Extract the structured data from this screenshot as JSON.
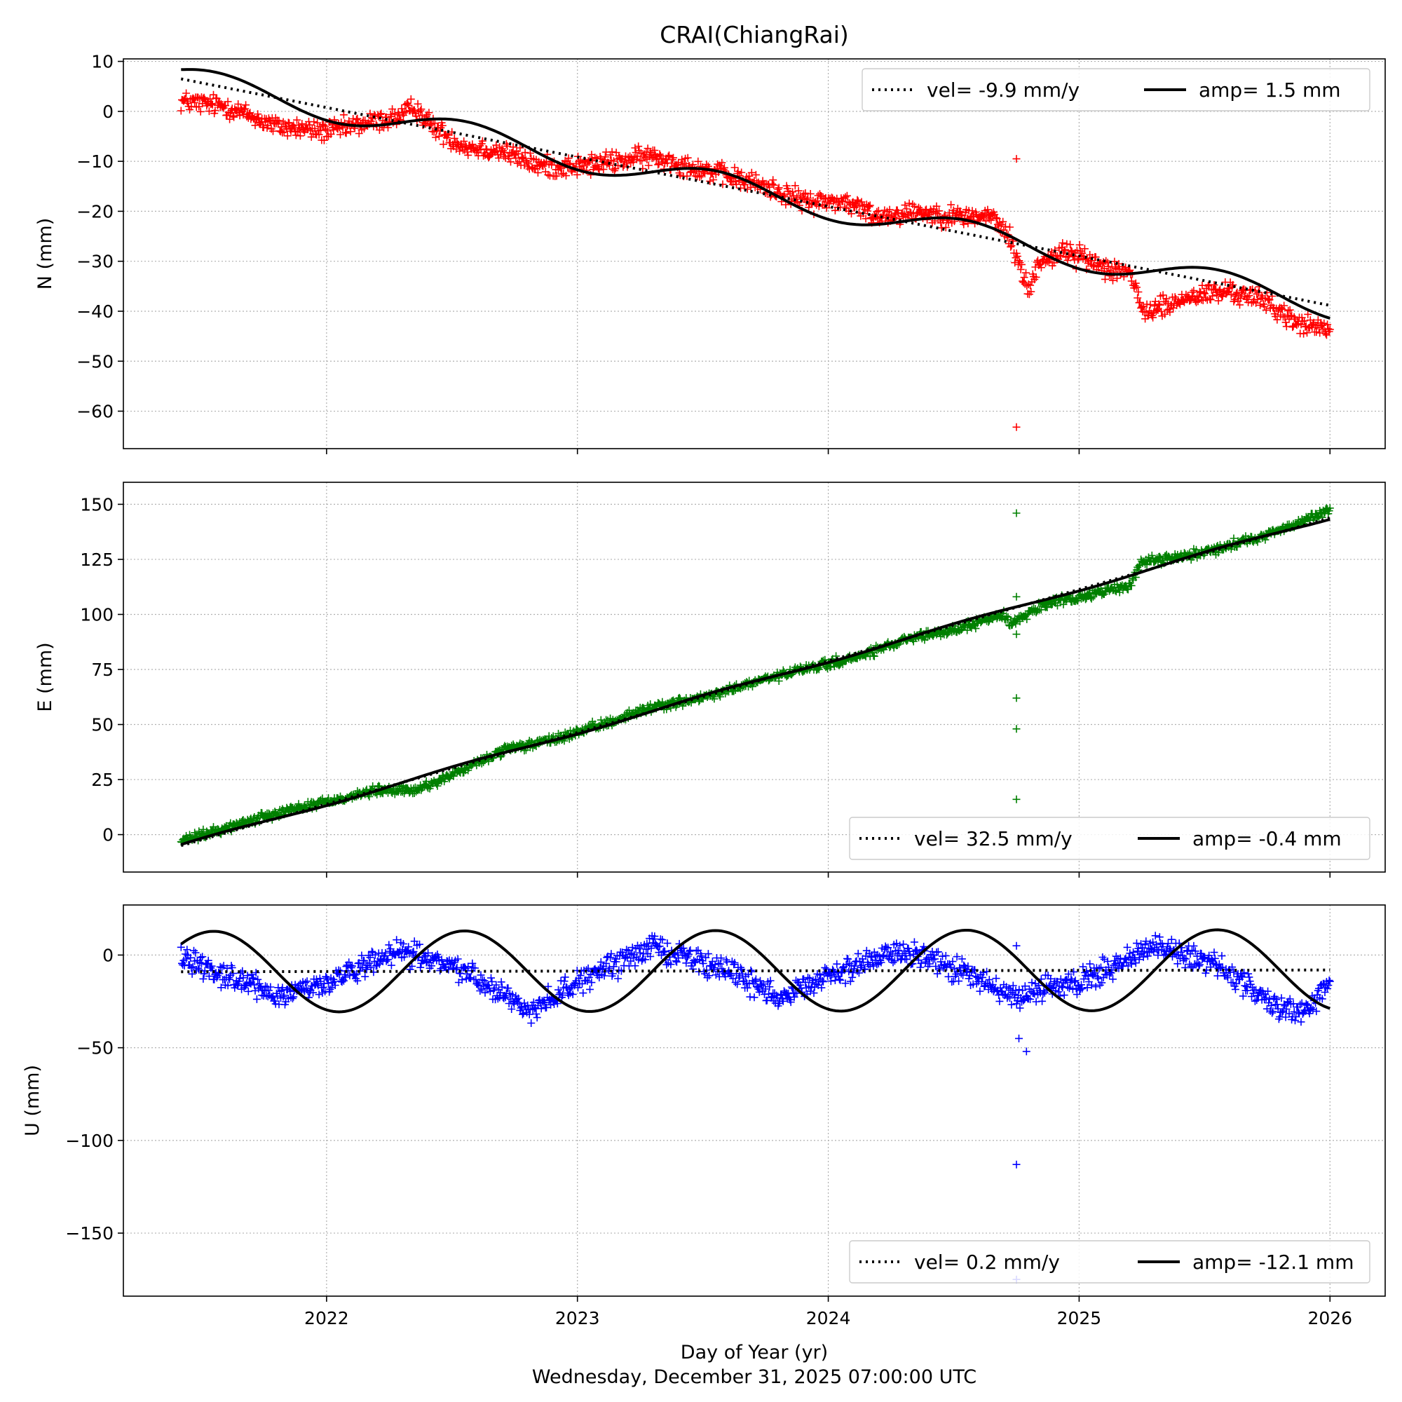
{
  "figure": {
    "title": "CRAI(ChiangRai)",
    "xlabel": "Day of Year (yr)",
    "timestamp": "Wednesday, December 31, 2025 07:00:00 UTC"
  },
  "chart_data": [
    {
      "type": "scatter",
      "title": "CRAI(ChiangRai)",
      "ylabel": "N (mm)",
      "xlabel": "",
      "xlim": [
        2021.19,
        2026.22
      ],
      "ylim": [
        -67.5,
        10.5
      ],
      "yticks": [
        10,
        0,
        -10,
        -20,
        -30,
        -40,
        -50,
        -60
      ],
      "xticks": [
        2022,
        2023,
        2024,
        2025,
        2026
      ],
      "grid": true,
      "marker_color": "#ff0000",
      "legend": {
        "location": "top-right",
        "vel_label": "vel= -9.9 mm/y",
        "amp_label": "amp= 1.5 mm"
      },
      "trend": {
        "start": 2021.42,
        "end": 2026.0,
        "offset": 6.5,
        "velocity": -9.9
      },
      "seasonal": {
        "amplitude": 1.5,
        "phase_year": 2021.55
      },
      "scatter_control": [
        [
          2021.42,
          2
        ],
        [
          2021.6,
          1
        ],
        [
          2021.8,
          -3
        ],
        [
          2022.0,
          -4
        ],
        [
          2022.2,
          -2
        ],
        [
          2022.3,
          -1
        ],
        [
          2022.35,
          1
        ],
        [
          2022.42,
          -3
        ],
        [
          2022.55,
          -7
        ],
        [
          2022.7,
          -8
        ],
        [
          2022.85,
          -11
        ],
        [
          2023.0,
          -11
        ],
        [
          2023.15,
          -10
        ],
        [
          2023.3,
          -9
        ],
        [
          2023.45,
          -11
        ],
        [
          2023.6,
          -13
        ],
        [
          2023.75,
          -15
        ],
        [
          2023.9,
          -18
        ],
        [
          2024.05,
          -18
        ],
        [
          2024.2,
          -21
        ],
        [
          2024.35,
          -20
        ],
        [
          2024.5,
          -21
        ],
        [
          2024.65,
          -21
        ],
        [
          2024.72,
          -25
        ],
        [
          2024.75,
          -29
        ],
        [
          2024.8,
          -36
        ],
        [
          2024.84,
          -30
        ],
        [
          2024.95,
          -28
        ],
        [
          2025.1,
          -31
        ],
        [
          2025.2,
          -32
        ],
        [
          2025.25,
          -40
        ],
        [
          2025.35,
          -39
        ],
        [
          2025.45,
          -37
        ],
        [
          2025.6,
          -36
        ],
        [
          2025.75,
          -38
        ],
        [
          2025.85,
          -42
        ],
        [
          2026.0,
          -44
        ]
      ],
      "scatter_noise": 1.8,
      "outliers": [
        [
          2024.75,
          -9.5
        ],
        [
          2024.75,
          -63.2
        ]
      ]
    },
    {
      "type": "scatter",
      "title": "",
      "ylabel": "E (mm)",
      "xlabel": "",
      "xlim": [
        2021.19,
        2026.22
      ],
      "ylim": [
        -17,
        160
      ],
      "yticks": [
        150,
        125,
        100,
        75,
        50,
        25,
        0
      ],
      "xticks": [
        2022,
        2023,
        2024,
        2025,
        2026
      ],
      "grid": true,
      "marker_color": "#008000",
      "legend": {
        "location": "bottom-right",
        "vel_label": "vel= 32.5 mm/y",
        "amp_label": "amp= -0.4 mm"
      },
      "trend": {
        "start": 2021.42,
        "end": 2026.0,
        "offset": -5,
        "velocity": 32.5
      },
      "seasonal": {
        "amplitude": -0.4,
        "phase_year": 2021.55
      },
      "scatter_control": [
        [
          2021.42,
          -3
        ],
        [
          2021.6,
          3
        ],
        [
          2021.8,
          10
        ],
        [
          2022.0,
          15
        ],
        [
          2022.2,
          20
        ],
        [
          2022.35,
          20
        ],
        [
          2022.5,
          27
        ],
        [
          2022.7,
          38
        ],
        [
          2022.9,
          43
        ],
        [
          2023.1,
          50
        ],
        [
          2023.3,
          58
        ],
        [
          2023.5,
          62
        ],
        [
          2023.7,
          69
        ],
        [
          2023.9,
          75
        ],
        [
          2024.1,
          80
        ],
        [
          2024.3,
          88
        ],
        [
          2024.5,
          93
        ],
        [
          2024.7,
          100
        ],
        [
          2024.73,
          96
        ],
        [
          2024.85,
          104
        ],
        [
          2025.0,
          108
        ],
        [
          2025.2,
          113
        ],
        [
          2025.25,
          124
        ],
        [
          2025.45,
          127
        ],
        [
          2025.65,
          133
        ],
        [
          2025.85,
          140
        ],
        [
          2026.0,
          148
        ]
      ],
      "scatter_noise": 1.8,
      "outliers": [
        [
          2024.75,
          146
        ],
        [
          2024.75,
          108
        ],
        [
          2024.75,
          91
        ],
        [
          2024.75,
          62
        ],
        [
          2024.75,
          48
        ],
        [
          2024.75,
          16
        ]
      ]
    },
    {
      "type": "scatter",
      "title": "",
      "ylabel": "U (mm)",
      "xlabel": "Day of Year (yr)",
      "xlim": [
        2021.19,
        2026.22
      ],
      "ylim": [
        -184,
        27
      ],
      "yticks": [
        0,
        -50,
        -100,
        -150
      ],
      "xticks": [
        2022,
        2023,
        2024,
        2025,
        2026
      ],
      "grid": true,
      "marker_color": "#0000ff",
      "legend": {
        "location": "bottom-right",
        "vel_label": "vel= 0.2 mm/y",
        "amp_label": "amp= -12.1 mm"
      },
      "trend": {
        "start": 2021.42,
        "end": 2026.0,
        "offset": -9,
        "velocity": 0.2
      },
      "seasonal": {
        "amplitude": -12.1,
        "phase_year": 2021.55
      },
      "scatter_control": [
        [
          2021.42,
          0
        ],
        [
          2021.55,
          -8
        ],
        [
          2021.8,
          -22
        ],
        [
          2022.0,
          -15
        ],
        [
          2022.3,
          2
        ],
        [
          2022.55,
          -8
        ],
        [
          2022.8,
          -30
        ],
        [
          2023.0,
          -15
        ],
        [
          2023.3,
          5
        ],
        [
          2023.55,
          -6
        ],
        [
          2023.8,
          -22
        ],
        [
          2024.0,
          -12
        ],
        [
          2024.3,
          3
        ],
        [
          2024.55,
          -10
        ],
        [
          2024.7,
          -20
        ],
        [
          2024.75,
          -25
        ],
        [
          2024.8,
          -20
        ],
        [
          2025.0,
          -15
        ],
        [
          2025.3,
          5
        ],
        [
          2025.55,
          -5
        ],
        [
          2025.75,
          -25
        ],
        [
          2025.9,
          -30
        ],
        [
          2026.0,
          -15
        ]
      ],
      "scatter_noise": 5.5,
      "outliers": [
        [
          2024.75,
          5
        ],
        [
          2024.76,
          -45
        ],
        [
          2024.79,
          -52
        ],
        [
          2024.75,
          -113
        ],
        [
          2024.75,
          -175
        ]
      ]
    }
  ]
}
